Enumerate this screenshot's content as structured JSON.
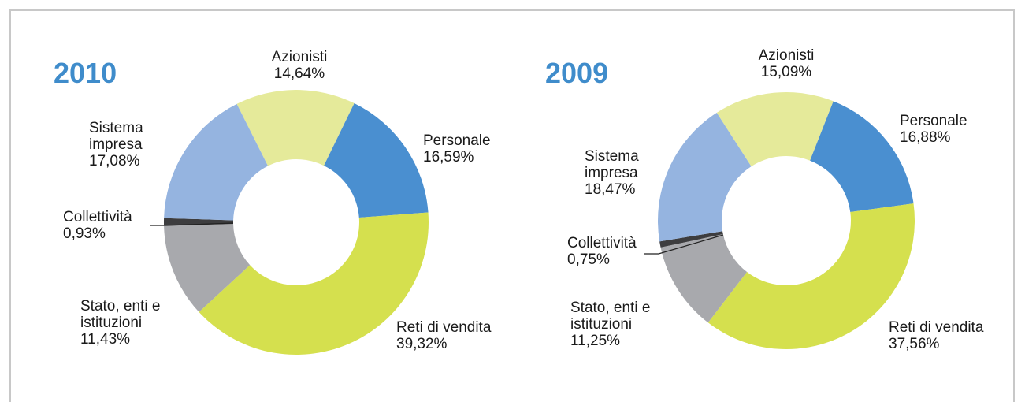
{
  "chart_data": [
    {
      "type": "pie",
      "title": "2010",
      "categories": [
        "Azionisti",
        "Personale",
        "Reti di vendita",
        "Stato, enti e istituzioni",
        "Collettività",
        "Sistema impresa"
      ],
      "values": [
        14.64,
        16.59,
        39.32,
        11.43,
        0.93,
        17.08
      ],
      "value_labels": [
        "14,64%",
        "16,59%",
        "39,32%",
        "11,43%",
        "0,93%",
        "17,08%"
      ],
      "colors": [
        "#e5ea9a",
        "#4a8fd0",
        "#d5e04e",
        "#a8a9ad",
        "#3d3d3f",
        "#95b4e0"
      ]
    },
    {
      "type": "pie",
      "title": "2009",
      "categories": [
        "Azionisti",
        "Personale",
        "Reti di vendita",
        "Stato, enti e istituzioni",
        "Collettività",
        "Sistema impresa"
      ],
      "values": [
        15.09,
        16.88,
        37.56,
        11.25,
        0.75,
        18.47
      ],
      "value_labels": [
        "15,09%",
        "16,88%",
        "37,56%",
        "11,25%",
        "0,75%",
        "18,47%"
      ],
      "colors": [
        "#e5ea9a",
        "#4a8fd0",
        "#d5e04e",
        "#a8a9ad",
        "#3d3d3f",
        "#95b4e0"
      ]
    }
  ]
}
